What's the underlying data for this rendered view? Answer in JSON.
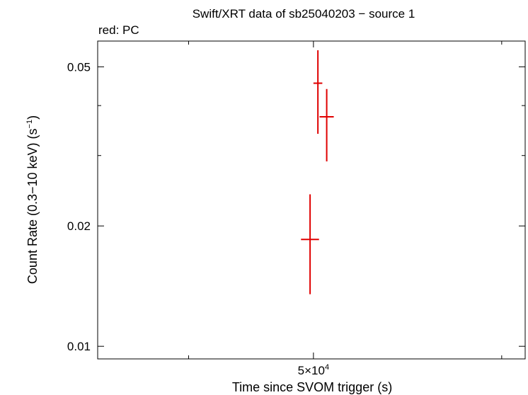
{
  "chart_data": {
    "type": "scatter",
    "title": "Swift/XRT data of sb25040203 − source 1",
    "subtitle": "red: PC",
    "xlabel": "Time since SVOM trigger (s)",
    "ylabel": {
      "main": "Count Rate (0.3−10 keV) (s",
      "sup": "−1",
      "close": ")"
    },
    "x_scale": "log",
    "y_scale": "log",
    "xlim": [
      34000,
      73000
    ],
    "ylim": [
      0.0093,
      0.058
    ],
    "x_tick_labels": [
      {
        "value": 50000,
        "mantissa": "5×10",
        "exponent": "4"
      }
    ],
    "y_tick_labels": [
      {
        "value": 0.05,
        "label": "0.05"
      },
      {
        "value": 0.02,
        "label": "0.02"
      },
      {
        "value": 0.01,
        "label": "0.01"
      }
    ],
    "y_minor_ticks": [
      0.03,
      0.04
    ],
    "x_minor_ticks": [
      40000,
      70000
    ],
    "grid": false,
    "series": [
      {
        "color": "#e00000",
        "points": [
          {
            "x": 49700,
            "y": 0.0185,
            "xerr": [
              800,
              800
            ],
            "yerr": [
              0.005,
              0.0055
            ]
          },
          {
            "x": 50400,
            "y": 0.0455,
            "xerr": [
              400,
              400
            ],
            "yerr": [
              0.0115,
              0.0095
            ]
          },
          {
            "x": 51200,
            "y": 0.0375,
            "xerr": [
              650,
              650
            ],
            "yerr": [
              0.0085,
              0.0065
            ]
          }
        ]
      }
    ]
  }
}
